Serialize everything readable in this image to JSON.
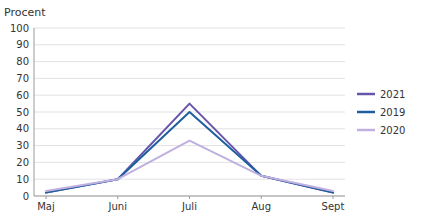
{
  "chart_data": {
    "type": "line",
    "ylabel": "Procent",
    "categories": [
      "Maj",
      "Juni",
      "Juli",
      "Aug",
      "Sept"
    ],
    "series": [
      {
        "name": "2021",
        "color": "#6655aa",
        "values": [
          2,
          10,
          55,
          12,
          2
        ]
      },
      {
        "name": "2019",
        "color": "#1e5fa0",
        "values": [
          2,
          10,
          50,
          12,
          2
        ]
      },
      {
        "name": "2020",
        "color": "#c0b0e0",
        "values": [
          3,
          10,
          33,
          12,
          3
        ]
      }
    ],
    "ylim": [
      0,
      100
    ],
    "yticks": [
      0,
      10,
      20,
      30,
      40,
      50,
      60,
      70,
      80,
      90,
      100
    ],
    "grid": true,
    "legend": "right"
  }
}
